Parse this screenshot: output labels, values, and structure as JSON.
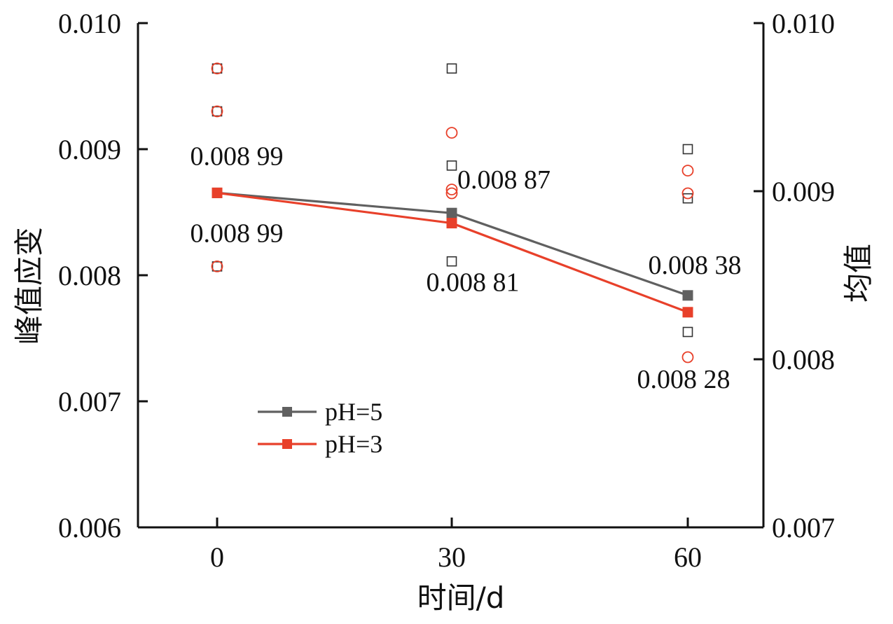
{
  "chart_data": {
    "type": "line",
    "xlabel": "时间/d",
    "ylabel": "峰值应变",
    "y2label": "均值",
    "categories": [
      "0",
      "30",
      "60"
    ],
    "ylim": [
      0.006,
      0.01
    ],
    "y2lim": [
      0.007,
      0.01
    ],
    "y_ticks": [
      "0.006",
      "0.007",
      "0.008",
      "0.009",
      "0.010"
    ],
    "y2_ticks": [
      "0.007",
      "0.008",
      "0.009",
      "0.010"
    ],
    "grid": false,
    "legend_position": "lower-left",
    "series": [
      {
        "name": "pH=5",
        "axis": "right",
        "color": "#606060",
        "values": [
          0.00899,
          0.00887,
          0.00838
        ],
        "labels": [
          "0.008 99",
          "0.008 87",
          "0.008 38"
        ],
        "scatter_marker": "square",
        "scatter": [
          {
            "x": "0",
            "values": [
              0.00964,
              0.0093,
              0.00807
            ]
          },
          {
            "x": "30",
            "values": [
              0.00964,
              0.00887,
              0.00811
            ]
          },
          {
            "x": "60",
            "values": [
              0.009,
              0.00861,
              0.00755
            ]
          }
        ]
      },
      {
        "name": "pH=3",
        "axis": "right",
        "color": "#e8402a",
        "values": [
          0.00899,
          0.00881,
          0.00828
        ],
        "labels": [
          "0.008 99",
          "0.008 81",
          "0.008 28"
        ],
        "scatter_marker": "circle",
        "scatter": [
          {
            "x": "0",
            "values": [
              0.00964,
              0.0093,
              0.00807
            ]
          },
          {
            "x": "30",
            "values": [
              0.00913,
              0.00868,
              0.00865
            ]
          },
          {
            "x": "60",
            "values": [
              0.00883,
              0.00865,
              0.00735
            ]
          }
        ]
      }
    ]
  }
}
